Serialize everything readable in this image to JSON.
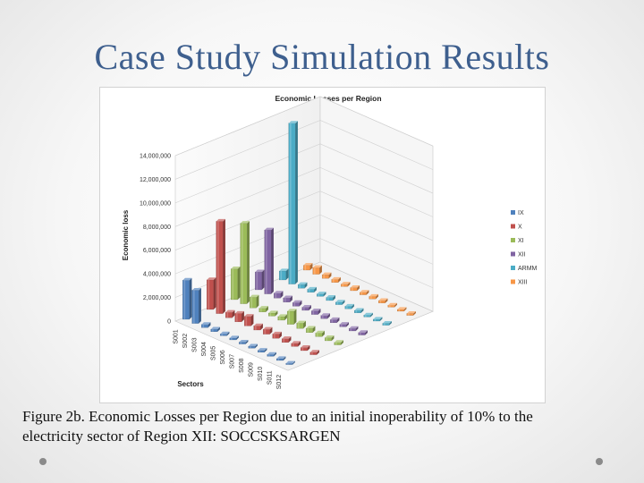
{
  "slide": {
    "title": "Case Study Simulation Results",
    "caption_line1": "Figure 2b. Economic Losses per Region due to an initial inoperability of 10% to the",
    "caption_line2": "electricity sector of Region XII: SOCCSKSARGEN"
  },
  "chart_data": {
    "type": "bar",
    "subtype": "3d-grouped-bar",
    "title": "Economic Losses per Region",
    "xlabel": "Sectors",
    "ylabel": "Economic loss",
    "ylim": [
      0,
      14000000
    ],
    "yticks": [
      "0",
      "2,000,000",
      "4,000,000",
      "6,000,000",
      "8,000,000",
      "10,000,000",
      "12,000,000",
      "14,000,000"
    ],
    "categories": [
      "S001",
      "S002",
      "S003",
      "S004",
      "S005",
      "S006",
      "S007",
      "S008",
      "S009",
      "S010",
      "S011",
      "S012"
    ],
    "legend_position": "right",
    "grid": true,
    "series": [
      {
        "name": "IX",
        "color": "#4f81bd",
        "values": [
          3300000,
          2800000,
          250000,
          200000,
          150000,
          150000,
          150000,
          150000,
          150000,
          150000,
          150000,
          100000
        ]
      },
      {
        "name": "X",
        "color": "#c0504d",
        "values": [
          2500000,
          7800000,
          450000,
          700000,
          800000,
          350000,
          400000,
          350000,
          300000,
          250000,
          250000,
          200000
        ]
      },
      {
        "name": "XI",
        "color": "#9bbb59",
        "values": [
          2600000,
          6800000,
          900000,
          300000,
          250000,
          300000,
          1100000,
          450000,
          350000,
          300000,
          250000,
          200000
        ]
      },
      {
        "name": "XII",
        "color": "#8064a2",
        "values": [
          1500000,
          5400000,
          400000,
          350000,
          300000,
          250000,
          300000,
          250000,
          250000,
          200000,
          200000,
          200000
        ]
      },
      {
        "name": "ARMM",
        "color": "#4bacc6",
        "values": [
          750000,
          13600000,
          300000,
          250000,
          200000,
          250000,
          200000,
          200000,
          200000,
          150000,
          150000,
          150000
        ]
      },
      {
        "name": "XIII",
        "color": "#f79646",
        "values": [
          400000,
          550000,
          300000,
          250000,
          200000,
          250000,
          200000,
          200000,
          200000,
          150000,
          150000,
          150000
        ]
      }
    ]
  }
}
